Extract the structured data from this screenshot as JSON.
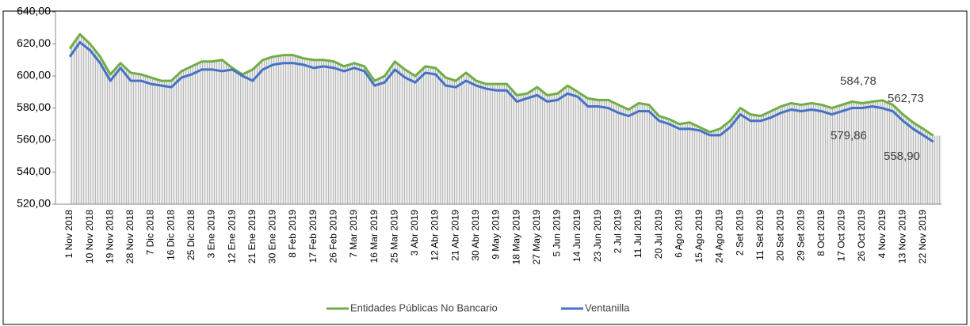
{
  "chart_data": {
    "type": "line",
    "categories": [
      "1 Nov 2018",
      null,
      "10 Nov 2018",
      null,
      "19 Nov 2018",
      null,
      "28 Nov 2018",
      null,
      "7 Dic 2018",
      null,
      "16 Dic 2018",
      null,
      "25 Dic 2018",
      null,
      "3 Ene 2019",
      null,
      "12 Ene 2019",
      null,
      "21 Ene 2019",
      null,
      "30 Ene 2019",
      null,
      "8 Feb 2019",
      null,
      "17 Feb 2019",
      null,
      "26 Feb 2019",
      null,
      "7 Mar 2019",
      null,
      "16 Mar 2019",
      null,
      "25 Mar 2019",
      null,
      "3 Abr 2019",
      null,
      "12 Abr 2019",
      null,
      "21 Abr 2019",
      null,
      "30 Abr 2019",
      null,
      "9 May 2019",
      null,
      "18 May 2019",
      null,
      "27 May 2019",
      null,
      "5 Jun 2019",
      null,
      "14 Jun 2019",
      null,
      "23 Jun 2019",
      null,
      "2 Jul 2019",
      null,
      "11 Jul 2019",
      null,
      "20 Jul 2019",
      null,
      "6 Ago 2019",
      null,
      "15 Ago 2019",
      null,
      "24 Ago 2019",
      null,
      "2 Set 2019",
      null,
      "11 Set 2019",
      null,
      "20 Set 2019",
      null,
      "29 Set 2019",
      null,
      "8 Oct 2019",
      null,
      "17 Oct 2019",
      null,
      "26 Oct 2019",
      null,
      "4 Nov 2019",
      null,
      "13 Nov 2019",
      null,
      "22 Nov 2019",
      null
    ],
    "series": [
      {
        "name": "Entidades Públicas No Bancario",
        "color": "#70ad47",
        "values": [
          617,
          626,
          620,
          612,
          601,
          608,
          602,
          601,
          599,
          597,
          597,
          603,
          606,
          609,
          609,
          610,
          605,
          601,
          604,
          610,
          612,
          613,
          613,
          611,
          610,
          610,
          609,
          606,
          608,
          606,
          597,
          600,
          609,
          604,
          600,
          606,
          605,
          599,
          597,
          602,
          597,
          595,
          595,
          595,
          588,
          589,
          593,
          588,
          589,
          594,
          590,
          586,
          585,
          585,
          582,
          579,
          583,
          582,
          575,
          573,
          570,
          571,
          568,
          565,
          567,
          572,
          580,
          576,
          575,
          578,
          581,
          583,
          582,
          583,
          582,
          580,
          582,
          584,
          583,
          584,
          584.78,
          582,
          576,
          571,
          567,
          562.73
        ]
      },
      {
        "name": "Ventanilla",
        "color": "#4472c4",
        "values": [
          612,
          621,
          616,
          608,
          597,
          605,
          597,
          597,
          595,
          594,
          593,
          599,
          601,
          604,
          604,
          603,
          604,
          600,
          597,
          604,
          607,
          608,
          608,
          607,
          605,
          606,
          605,
          603,
          605,
          603,
          594,
          596,
          604,
          599,
          596,
          602,
          601,
          594,
          593,
          597,
          594,
          592,
          591,
          591,
          584,
          586,
          588,
          584,
          585,
          589,
          587,
          581,
          581,
          580,
          577,
          575,
          578,
          578,
          572,
          570,
          567,
          567,
          566,
          563,
          563,
          568,
          576,
          572,
          572,
          574,
          577,
          579,
          578,
          579,
          578,
          576,
          578,
          580,
          580,
          581,
          579.86,
          578,
          572,
          567,
          563,
          558.9
        ]
      }
    ],
    "annotations": [
      "584,78",
      "562,73",
      "579,86",
      "558,90"
    ],
    "ylim": [
      520,
      640
    ],
    "yticks": [
      {
        "value": 520,
        "label": "520,00"
      },
      {
        "value": 540,
        "label": "540,00"
      },
      {
        "value": 560,
        "label": "560,00"
      },
      {
        "value": 580,
        "label": "580,00"
      },
      {
        "value": 600,
        "label": "600,00"
      },
      {
        "value": 620,
        "label": "620,00"
      },
      {
        "value": 640,
        "label": "640,00"
      }
    ],
    "legend": "bottom"
  }
}
